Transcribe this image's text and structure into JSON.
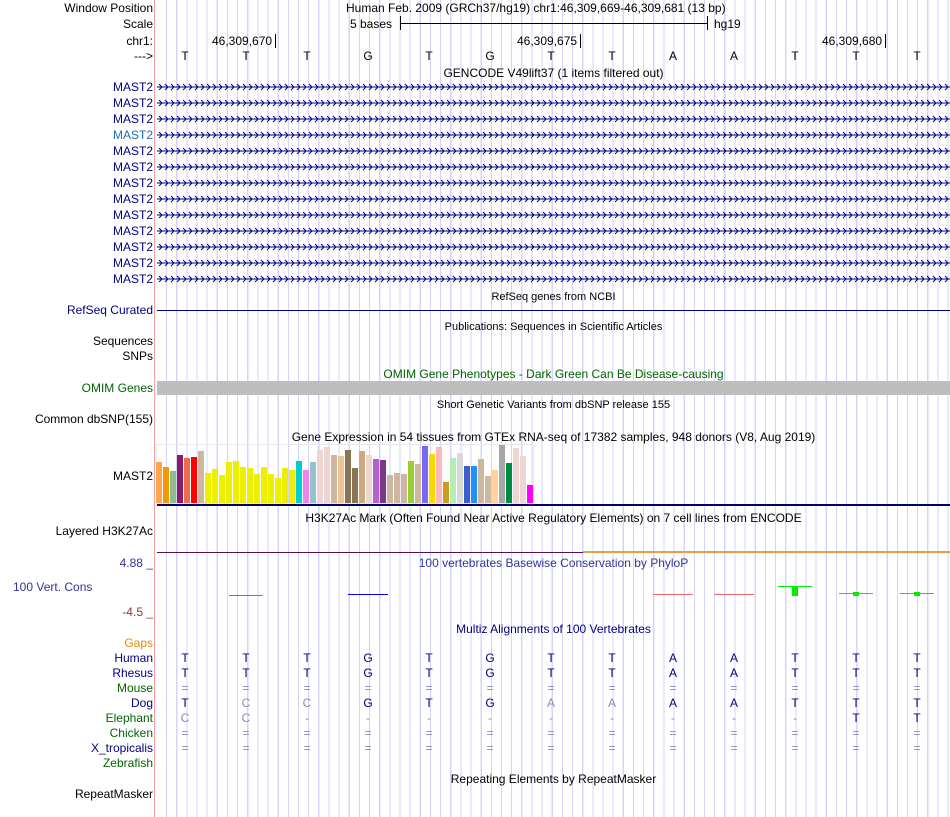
{
  "header": {
    "window_position_label": "Window Position",
    "window_position_value": "Human Feb. 2009 (GRCh37/hg19)   chr1:46,309,669-46,309,681 (13 bp)",
    "scale_label": "Scale",
    "scale_value": "5 bases",
    "scale_assembly": "hg19",
    "chrom_label": "chr1:",
    "positions": [
      "46,309,670",
      "46,309,675",
      "46,309,680"
    ],
    "strand_label": "--->",
    "bases": [
      "T",
      "T",
      "T",
      "G",
      "T",
      "G",
      "T",
      "T",
      "A",
      "A",
      "T",
      "T",
      "T"
    ]
  },
  "gencode": {
    "title": "GENCODE V49lift37 (1 items filtered out)",
    "genes": [
      "MAST2",
      "MAST2",
      "MAST2",
      "MAST2",
      "MAST2",
      "MAST2",
      "MAST2",
      "MAST2",
      "MAST2",
      "MAST2",
      "MAST2",
      "MAST2",
      "MAST2"
    ]
  },
  "refseq": {
    "title": "RefSeq genes from NCBI",
    "label": "RefSeq Curated"
  },
  "publications": {
    "title": "Publications: Sequences in Scientific Articles",
    "labels": [
      "Sequences",
      "SNPs"
    ]
  },
  "omim": {
    "title": "OMIM Gene Phenotypes - Dark Green Can Be Disease-causing",
    "label": "OMIM Genes"
  },
  "dbsnp": {
    "title": "Short Genetic Variants from dbSNP release 155",
    "label": "Common dbSNP(155)"
  },
  "gtex": {
    "title": "Gene Expression in 54 tissues from GTEx RNA-seq of 17382 samples, 948 donors (V8, Aug 2019)",
    "label": "MAST2",
    "values": [
      42,
      37,
      33,
      50,
      47,
      48,
      54,
      31,
      35,
      29,
      42,
      43,
      37,
      36,
      30,
      37,
      30,
      26,
      36,
      34,
      43,
      34,
      42,
      55,
      58,
      50,
      49,
      55,
      36,
      54,
      50,
      46,
      45,
      29,
      31,
      30,
      43,
      40,
      59,
      51,
      58,
      22,
      47,
      52,
      38,
      38,
      46,
      28,
      34,
      60,
      41,
      57,
      49,
      19
    ],
    "colors": [
      "#FFA54F",
      "#EE9A00",
      "#8FBC8F",
      "#8B1C62",
      "#EE6A50",
      "#FF0000",
      "#CDB79E",
      "#EEEE00",
      "#EEEE00",
      "#EEEE00",
      "#EEEE00",
      "#EEEE00",
      "#EEEE00",
      "#EEEE00",
      "#EEEE00",
      "#EEEE00",
      "#EEEE00",
      "#EEEE00",
      "#EEEE00",
      "#EEEE00",
      "#00CED1",
      "#EE82EE",
      "#9AC0CD",
      "#EED5D2",
      "#EED5D2",
      "#CDB79E",
      "#EEC591",
      "#8B7355",
      "#8B7355",
      "#CDAA7D",
      "#EED5D2",
      "#B460CD",
      "#7A378B",
      "#CDB79E",
      "#CDB79E",
      "#CDB79E",
      "#9ACD32",
      "#CDB79E",
      "#7B68EE",
      "#FFD700",
      "#FFB6C1",
      "#CD9B1D",
      "#B4EEB4",
      "#D9D9D9",
      "#3A5FCD",
      "#1E90FF",
      "#CDB79E",
      "#CDB79E",
      "#FFD39B",
      "#A6A6A6",
      "#008B45",
      "#EED5D2",
      "#EED5D2",
      "#FF00FF"
    ]
  },
  "h3k27ac": {
    "title": "H3K27Ac Mark (Often Found Near Active Regulatory Elements) on 7 cell lines from ENCODE",
    "label": "Layered H3K27Ac"
  },
  "phylop": {
    "title": "100 vertebrates Basewise Conservation by PhyloP",
    "label": "100 Vert. Cons",
    "max": "4.88 _",
    "min": "-4.5 _",
    "values": [
      null,
      -1.3,
      null,
      -1.0,
      null,
      null,
      null,
      null,
      -1.0,
      -1.0,
      0.5,
      -0.8,
      -0.8
    ],
    "colors": [
      "",
      "#00cc00",
      "",
      "#0000ee",
      "",
      "",
      "",
      "",
      "#ee6666",
      "#ee6666",
      "#00ee00",
      "#00ee00",
      "#00ee00"
    ]
  },
  "multiz": {
    "title": "Multiz Alignments of 100 Vertebrates",
    "gaps_label": "Gaps",
    "species": [
      {
        "name": "Human",
        "color": "#000080",
        "seq": [
          "T",
          "T",
          "T",
          "G",
          "T",
          "G",
          "T",
          "T",
          "A",
          "A",
          "T",
          "T",
          "T"
        ]
      },
      {
        "name": "Rhesus",
        "color": "#000080",
        "seq": [
          "T",
          "T",
          "T",
          "G",
          "T",
          "G",
          "T",
          "T",
          "A",
          "A",
          "T",
          "T",
          "T"
        ]
      },
      {
        "name": "Mouse",
        "color": "#006400",
        "seq": [
          "=",
          "=",
          "=",
          "=",
          "=",
          "=",
          "=",
          "=",
          "=",
          "=",
          "=",
          "=",
          "="
        ]
      },
      {
        "name": "Dog",
        "color": "#000080",
        "seq": [
          "T",
          "C",
          "C",
          "G",
          "T",
          "G",
          "A",
          "A",
          "A",
          "A",
          "T",
          "T",
          "T"
        ]
      },
      {
        "name": "Elephant",
        "color": "#006400",
        "seq": [
          "C",
          "C",
          "-",
          "-",
          "-",
          "-",
          "-",
          "-",
          "-",
          "-",
          "-",
          "T",
          "T"
        ]
      },
      {
        "name": "Chicken",
        "color": "#006400",
        "seq": [
          "=",
          "=",
          "=",
          "=",
          "=",
          "=",
          "=",
          "=",
          "=",
          "=",
          "=",
          "=",
          "="
        ]
      },
      {
        "name": "X_tropicalis",
        "color": "#000080",
        "seq": [
          "=",
          "=",
          "=",
          "=",
          "=",
          "=",
          "=",
          "=",
          "=",
          "=",
          "=",
          "=",
          "="
        ]
      },
      {
        "name": "Zebrafish",
        "color": "#006400",
        "seq": [
          "",
          "",
          "",
          "",
          "",
          "",
          "",
          "",
          "",
          "",
          "",
          "",
          ""
        ]
      }
    ]
  },
  "repeatmasker": {
    "title": "Repeating Elements by RepeatMasker",
    "label": "RepeatMasker"
  }
}
